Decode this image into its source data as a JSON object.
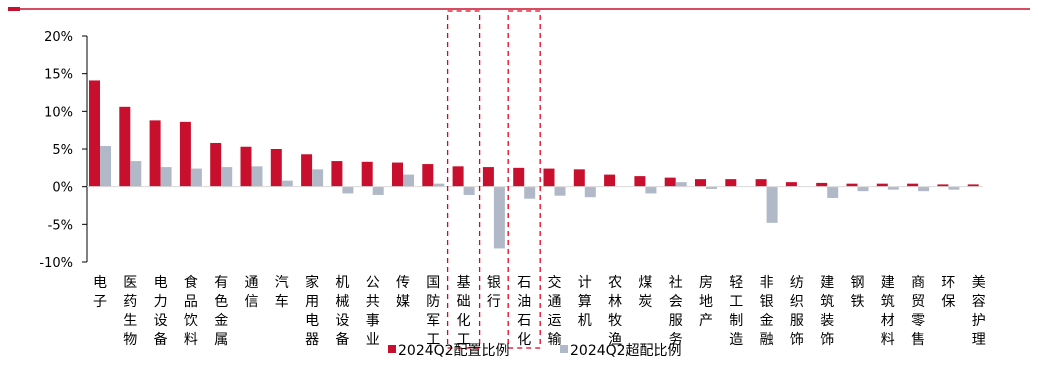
{
  "chart_data": {
    "type": "bar",
    "title": "",
    "xlabel": "",
    "ylabel": "",
    "ylim": [
      -10,
      20
    ],
    "yticks": [
      -10,
      -5,
      0,
      5,
      10,
      15,
      20
    ],
    "ytick_labels": [
      "-10%",
      "-5%",
      "0%",
      "5%",
      "10%",
      "15%",
      "20%"
    ],
    "grid": false,
    "legend_position": "bottom-center",
    "categories": [
      "电子",
      "医药生物",
      "电力设备",
      "食品饮料",
      "有色金属",
      "通信",
      "汽车",
      "家用电器",
      "机械设备",
      "公共事业",
      "传媒",
      "国防军工",
      "基础化工",
      "银行",
      "石油石化",
      "交通运输",
      "计算机",
      "农林牧渔",
      "煤炭",
      "社会服务",
      "房地产",
      "轻工制造",
      "非银金融",
      "纺织服饰",
      "建筑装饰",
      "钢铁",
      "建筑材料",
      "商贸零售",
      "环保",
      "美容护理"
    ],
    "series": [
      {
        "name": "2024Q2配置比例",
        "color": "#c8102e",
        "values": [
          14.1,
          10.6,
          8.8,
          8.6,
          5.8,
          5.3,
          5.0,
          4.3,
          3.4,
          3.3,
          3.2,
          3.0,
          2.7,
          2.6,
          2.5,
          2.4,
          2.3,
          1.6,
          1.4,
          1.2,
          1.0,
          1.0,
          1.0,
          0.6,
          0.5,
          0.4,
          0.4,
          0.4,
          0.3,
          0.3
        ]
      },
      {
        "name": "2024Q2超配比例",
        "color": "#b1b9c9",
        "values": [
          5.4,
          3.4,
          2.6,
          2.4,
          2.6,
          2.7,
          0.8,
          2.3,
          -0.9,
          -1.1,
          1.6,
          0.4,
          -1.1,
          -8.2,
          -1.6,
          -1.2,
          -1.4,
          0.0,
          -0.9,
          0.6,
          -0.3,
          0.0,
          -4.8,
          0.0,
          -1.5,
          -0.6,
          -0.4,
          -0.6,
          -0.4,
          0.0
        ]
      }
    ],
    "highlighted_categories": [
      "基础化工",
      "石油石化"
    ]
  }
}
